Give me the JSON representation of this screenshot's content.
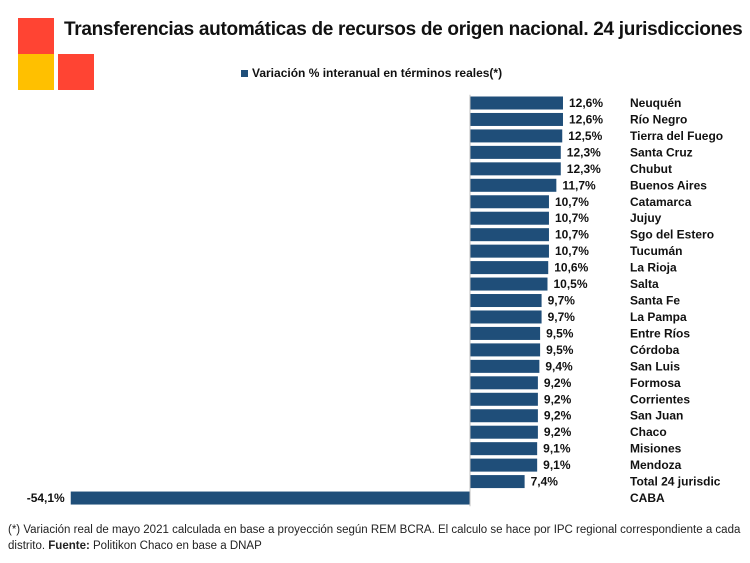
{
  "title": "Transferencias automáticas de recursos de origen nacional. 24 jurisdicciones",
  "logo": {
    "colors": [
      "#ff4433",
      "#ffc000",
      "#ff4433"
    ]
  },
  "footnote": {
    "text": "(*) Variación real de mayo 2021 calculada en base a proyección según REM BCRA. El calculo se hace por IPC regional correspondiente a cada distrito.",
    "source_label": "Fuente:",
    "source_text": "Politikon Chaco en base a DNAP"
  },
  "chart_data": {
    "type": "bar",
    "orientation": "horizontal",
    "categories": [
      "Neuquén",
      "Río Negro",
      "Tierra del Fuego",
      "Santa Cruz",
      "Chubut",
      "Buenos Aires",
      "Catamarca",
      "Jujuy",
      "Sgo del Estero",
      "Tucumán",
      "La Rioja",
      "Salta",
      "Santa Fe",
      "La Pampa",
      "Entre Ríos",
      "Córdoba",
      "San Luis",
      "Formosa",
      "Corrientes",
      "San Juan",
      "Chaco",
      "Misiones",
      "Mendoza",
      "Total 24 jurisdic",
      "CABA"
    ],
    "series": [
      {
        "name": "Variación % interanual en términos reales(*)",
        "color": "#1f4e79",
        "values": [
          12.6,
          12.6,
          12.5,
          12.3,
          12.3,
          11.7,
          10.7,
          10.7,
          10.7,
          10.7,
          10.6,
          10.5,
          9.7,
          9.7,
          9.5,
          9.5,
          9.4,
          9.2,
          9.2,
          9.2,
          9.2,
          9.1,
          9.1,
          7.4,
          -54.1
        ],
        "labels": [
          "12,6%",
          "12,6%",
          "12,5%",
          "12,3%",
          "12,3%",
          "11,7%",
          "10,7%",
          "10,7%",
          "10,7%",
          "10,7%",
          "10,6%",
          "10,5%",
          "9,7%",
          "9,7%",
          "9,5%",
          "9,5%",
          "9,4%",
          "9,2%",
          "9,2%",
          "9,2%",
          "9,2%",
          "9,1%",
          "9,1%",
          "7,4%",
          "-54,1%"
        ]
      }
    ],
    "legend": "top-center",
    "grid": false
  }
}
